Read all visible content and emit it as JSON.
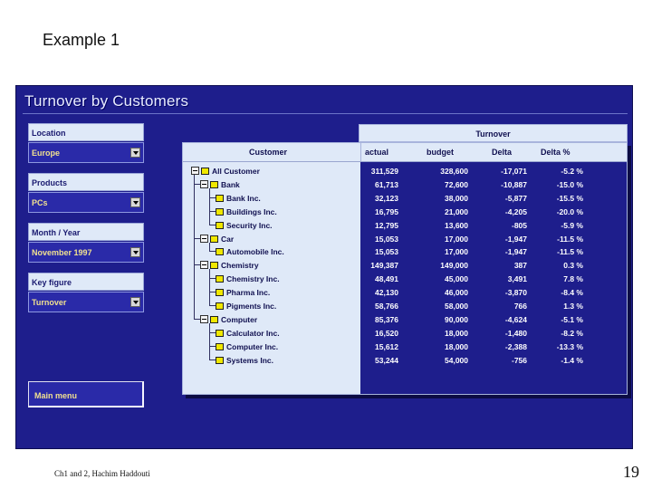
{
  "slide": {
    "title": "Example 1",
    "footer": "Ch1 and 2, Hachim Haddouti",
    "page_number": "19"
  },
  "app": {
    "title": "Turnover by Customers",
    "main_menu_label": "Main menu"
  },
  "filters": [
    {
      "label": "Location",
      "value": "Europe"
    },
    {
      "label": "Products",
      "value": "PCs"
    },
    {
      "label": "Month / Year",
      "value": "November 1997"
    },
    {
      "label": "Key figure",
      "value": "Turnover"
    }
  ],
  "table": {
    "group_header": "Turnover",
    "columns": [
      "Customer",
      "actual",
      "budget",
      "Delta",
      "Delta %"
    ],
    "rows": [
      {
        "name": "All Customer",
        "level": 0,
        "node": "group",
        "actual": "311,529",
        "budget": "328,600",
        "delta": "-17,071",
        "delta_pct": "-5.2 %"
      },
      {
        "name": "Bank",
        "level": 1,
        "node": "group",
        "actual": "61,713",
        "budget": "72,600",
        "delta": "-10,887",
        "delta_pct": "-15.0 %"
      },
      {
        "name": "Bank Inc.",
        "level": 2,
        "node": "leaf",
        "actual": "32,123",
        "budget": "38,000",
        "delta": "-5,877",
        "delta_pct": "-15.5 %"
      },
      {
        "name": "Buildings Inc.",
        "level": 2,
        "node": "leaf",
        "actual": "16,795",
        "budget": "21,000",
        "delta": "-4,205",
        "delta_pct": "-20.0 %"
      },
      {
        "name": "Security Inc.",
        "level": 2,
        "node": "leaf",
        "actual": "12,795",
        "budget": "13,600",
        "delta": "-805",
        "delta_pct": "-5.9 %"
      },
      {
        "name": "Car",
        "level": 1,
        "node": "group",
        "actual": "15,053",
        "budget": "17,000",
        "delta": "-1,947",
        "delta_pct": "-11.5 %"
      },
      {
        "name": "Automobile Inc.",
        "level": 2,
        "node": "leaf",
        "actual": "15,053",
        "budget": "17,000",
        "delta": "-1,947",
        "delta_pct": "-11.5 %"
      },
      {
        "name": "Chemistry",
        "level": 1,
        "node": "group",
        "actual": "149,387",
        "budget": "149,000",
        "delta": "387",
        "delta_pct": "0.3 %"
      },
      {
        "name": "Chemistry Inc.",
        "level": 2,
        "node": "leaf",
        "actual": "48,491",
        "budget": "45,000",
        "delta": "3,491",
        "delta_pct": "7.8 %"
      },
      {
        "name": "Pharma Inc.",
        "level": 2,
        "node": "leaf",
        "actual": "42,130",
        "budget": "46,000",
        "delta": "-3,870",
        "delta_pct": "-8.4 %"
      },
      {
        "name": "Pigments Inc.",
        "level": 2,
        "node": "leaf",
        "actual": "58,766",
        "budget": "58,000",
        "delta": "766",
        "delta_pct": "1.3 %"
      },
      {
        "name": "Computer",
        "level": 1,
        "node": "group",
        "actual": "85,376",
        "budget": "90,000",
        "delta": "-4,624",
        "delta_pct": "-5.1 %"
      },
      {
        "name": "Calculator Inc.",
        "level": 2,
        "node": "leaf",
        "actual": "16,520",
        "budget": "18,000",
        "delta": "-1,480",
        "delta_pct": "-8.2 %"
      },
      {
        "name": "Computer Inc.",
        "level": 2,
        "node": "leaf",
        "actual": "15,612",
        "budget": "18,000",
        "delta": "-2,388",
        "delta_pct": "-13.3 %"
      },
      {
        "name": "Systems Inc.",
        "level": 2,
        "node": "leaf",
        "actual": "53,244",
        "budget": "54,000",
        "delta": "-756",
        "delta_pct": "-1.4 %"
      }
    ]
  },
  "colors": {
    "window_bg": "#1e1e8c",
    "panel_bg": "#dfe9f8",
    "select_text": "#f0e090",
    "folder_icon": "#f0e800"
  }
}
